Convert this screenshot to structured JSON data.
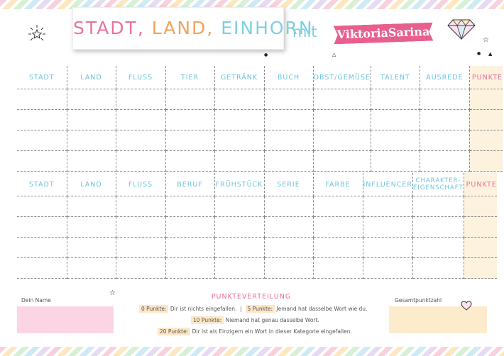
{
  "header": {
    "title_words": [
      "STADT,",
      "LAND,",
      "EINHORN"
    ],
    "mit": "mit",
    "brand": "ViktoriaSarina"
  },
  "table1": {
    "headers": [
      "STADT",
      "LAND",
      "FLUSS",
      "TIER",
      "GETRÄNK",
      "BUCH",
      "OBST/GEMÜSE",
      "TALENT",
      "AUSREDE",
      "PUNKTE"
    ]
  },
  "table2": {
    "headers": [
      "STADT",
      "LAND",
      "FLUSS",
      "BERUF",
      "FRÜHSTÜCK",
      "SERIE",
      "FARBE",
      "INFLUENCER",
      "CHARAKTER-EIGENSCHAFT",
      "PUNKTE"
    ]
  },
  "footer": {
    "name_label": "Dein Name",
    "total_label": "Gesamtpunktzahl",
    "rules_title": "PUNKTEVERTEILUNG",
    "rule0_pill": "0 Punkte:",
    "rule0_text": "Dir ist nichts eingefallen.",
    "sep": "|",
    "rule5_pill": "5 Punkte:",
    "rule5_text": "Jemand hat dasselbe Wort wie du.",
    "rule10_pill": "10 Punkte:",
    "rule10_text": "Niemand hat genau dasselbe Wort.",
    "rule20_pill": "20 Punkte:",
    "rule20_text": "Dir ist als Einzigem ein Wort in dieser Kategorie eingefallen."
  },
  "colors": {
    "pink": "#e96d97",
    "orange": "#f2a25c",
    "teal": "#6cc3dc",
    "points_bg": "#fdf2dd",
    "name_bg": "#fbd5e3",
    "total_bg": "#fdeccc"
  },
  "icons": [
    "sun-icon",
    "diamond-icon",
    "star-icon",
    "heart-icon"
  ]
}
